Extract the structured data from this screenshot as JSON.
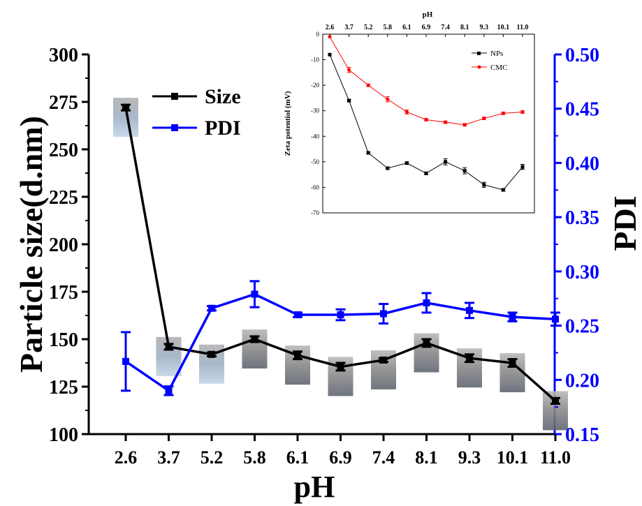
{
  "chart_data": [
    {
      "type": "line",
      "categories": [
        "2.6",
        "3.7",
        "5.2",
        "5.8",
        "6.1",
        "6.9",
        "7.4",
        "8.1",
        "9.3",
        "10.1",
        "11.0"
      ],
      "tick_labels": [
        "2.6",
        "3.7",
        "5.2",
        "5.8",
        "6.1",
        "6.9",
        "7.4",
        "8.1",
        "9.3",
        "10.1",
        "11.0"
      ],
      "xlabel": "pH",
      "ylabel": "Particle size(d.nm)",
      "ylabel_right": "PDI",
      "ylim": [
        100,
        300
      ],
      "ylim_right": [
        0.15,
        0.5
      ],
      "yticks": [
        "100",
        "125",
        "150",
        "175",
        "200",
        "225",
        "250",
        "275",
        "300"
      ],
      "yticks_right": [
        "0.15",
        "0.20",
        "0.25",
        "0.30",
        "0.35",
        "0.40",
        "0.45",
        "0.50"
      ],
      "legend_position": "top-left",
      "series": [
        {
          "name": "Size",
          "axis": "left",
          "color": "#000000",
          "values": [
            272,
            146,
            142,
            150,
            141.5,
            135.5,
            139,
            148,
            140,
            137.5,
            117.5
          ],
          "errors": [
            1.5,
            1.5,
            1,
            1.5,
            2,
            2,
            1,
            2,
            2,
            2,
            1.5
          ]
        },
        {
          "name": "PDI",
          "axis": "right",
          "color": "#0000ff",
          "values": [
            0.217,
            0.19,
            0.266,
            0.279,
            0.26,
            0.26,
            0.261,
            0.271,
            0.264,
            0.258,
            0.256
          ],
          "errors": [
            0.027,
            0.004,
            0.002,
            0.012,
            0.002,
            0.005,
            0.009,
            0.009,
            0.007,
            0.004,
            0.006
          ]
        }
      ]
    },
    {
      "type": "line",
      "categories": [
        "2.6",
        "3.7",
        "5.2",
        "5.8",
        "6.1",
        "6.9",
        "7.4",
        "8.1",
        "9.3",
        "10.1",
        "11.0"
      ],
      "tick_labels": [
        "2.6",
        "3.7",
        "5.2",
        "5.8",
        "6.1",
        "6.9",
        "7.4",
        "8.1",
        "9.3",
        "10.1",
        "11.0"
      ],
      "xlabel": "pH",
      "ylabel": "Zeta potentiol (mV)",
      "ylim": [
        -70,
        0
      ],
      "yticks": [
        "-70",
        "-60",
        "-50",
        "-40",
        "-30",
        "-20",
        "-10",
        "0"
      ],
      "legend_position": "top-right",
      "series": [
        {
          "name": "NPs",
          "color": "#000000",
          "values": [
            -8,
            -26,
            -46.5,
            -52.5,
            -50.5,
            -54.5,
            -50,
            -53.5,
            -59,
            -61,
            -52
          ],
          "errors": [
            0,
            0.5,
            0.5,
            0.5,
            0.5,
            0.5,
            1.2,
            1.2,
            1,
            0.5,
            1
          ]
        },
        {
          "name": "CMC",
          "color": "#ff0000",
          "values": [
            -1,
            -14,
            -20,
            -25.5,
            -30.5,
            -33.5,
            -34.5,
            -35.5,
            -33,
            -31,
            -30.5
          ],
          "errors": [
            0,
            1,
            0.5,
            1,
            0.8,
            0.5,
            0.5,
            0.5,
            0.5,
            0.5,
            0.5
          ]
        }
      ]
    }
  ]
}
